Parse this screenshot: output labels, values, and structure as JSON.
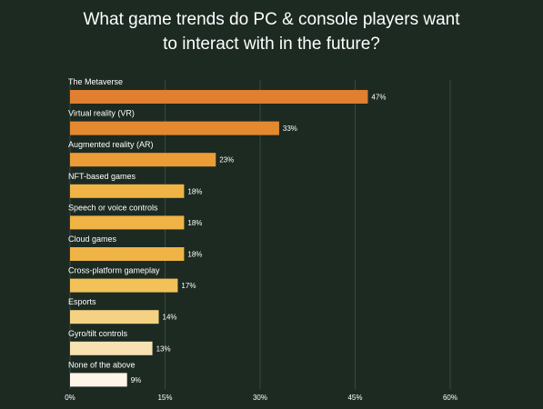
{
  "title_lines": [
    "What game trends do PC & console players want",
    "to interact with in the future?"
  ],
  "chart_data": {
    "type": "bar",
    "orientation": "horizontal",
    "title": "What game trends do PC & console players want to interact with in the future?",
    "categories": [
      "The Metaverse",
      "Virtual reality (VR)",
      "Augmented reality (AR)",
      "NFT-based games",
      "Speech or voice controls",
      "Cloud games",
      "Cross-platform gameplay",
      "Esports",
      "Gyro/tilt controls",
      "None of the above"
    ],
    "values": [
      47,
      33,
      23,
      18,
      18,
      18,
      17,
      14,
      13,
      9
    ],
    "value_labels": [
      "47%",
      "33%",
      "23%",
      "18%",
      "18%",
      "18%",
      "17%",
      "14%",
      "13%",
      "9%"
    ],
    "xlim": [
      0,
      60
    ],
    "xticks": [
      0,
      15,
      30,
      45,
      60
    ],
    "xtick_labels": [
      "0%",
      "15%",
      "30%",
      "45%",
      "60%"
    ],
    "grid": "vertical",
    "bar_colors": [
      "#e07f30",
      "#e4892f",
      "#eb9c36",
      "#efb445",
      "#efb445",
      "#efb445",
      "#f2c158",
      "#f5d283",
      "#f8e1b3",
      "#fdf5e8"
    ],
    "background": "#1c2a22"
  }
}
